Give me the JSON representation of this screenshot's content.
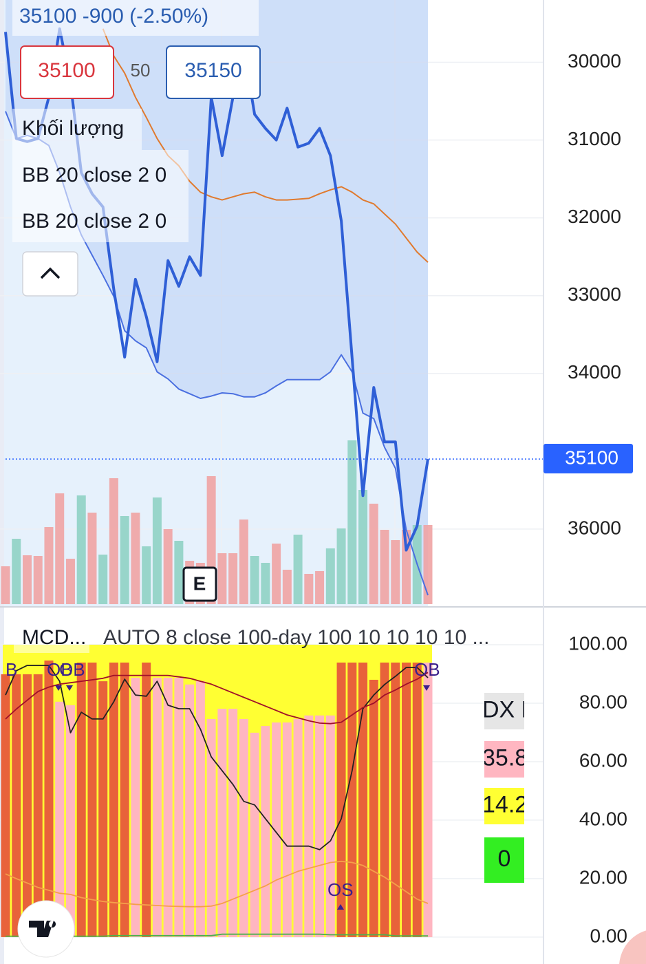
{
  "overlay": {
    "quote": "35100  -900 (-2.50%)",
    "bid": "35100",
    "spread": "50",
    "ask": "35150",
    "volume_label": "Khối lượng",
    "bb_labels": [
      "BB 20 close 2 0",
      "BB 20 close 2 0"
    ],
    "earnings": "E",
    "price_tag": "35100"
  },
  "chart_data": [
    {
      "type": "line",
      "inverted": true,
      "ylim": [
        29200,
        37000
      ],
      "yticks": [
        30000,
        31000,
        32000,
        33000,
        34000,
        36000
      ],
      "grid": true,
      "price_line": 35100,
      "categories": [
        null,
        null,
        null,
        null,
        null,
        null,
        null,
        null,
        null,
        null,
        null,
        null,
        null,
        null,
        null,
        null,
        null,
        null,
        null,
        null,
        null,
        null,
        null,
        null,
        null,
        null,
        null,
        null,
        null,
        null,
        null,
        null,
        null,
        null,
        null,
        null,
        null,
        null,
        null,
        null
      ],
      "series": [
        {
          "color": "#2f5fd6",
          "values": [
            29610,
            30980,
            31020,
            30980,
            30450,
            29570,
            30270,
            31420,
            31690,
            31860,
            32920,
            33790,
            32790,
            33270,
            33850,
            32550,
            32880,
            32500,
            32740,
            30450,
            31200,
            30450,
            29830,
            30670,
            30850,
            31000,
            30590,
            31090,
            31040,
            30850,
            31200,
            32040,
            33800,
            35570,
            34180,
            34880,
            34880,
            36270,
            35960,
            35100
          ]
        },
        {
          "color": "#4a6fe0",
          "values": [
            30630,
            30980,
            30940,
            30980,
            31070,
            31420,
            31860,
            32220,
            32480,
            32740,
            33010,
            33450,
            33580,
            33670,
            33980,
            34070,
            34200,
            34260,
            34320,
            34290,
            34250,
            34260,
            34300,
            34300,
            34250,
            34160,
            34080,
            34080,
            34080,
            34080,
            33980,
            33760,
            33980,
            34510,
            34580,
            34950,
            35220,
            36010,
            36450,
            36850
          ]
        },
        {
          "color": "#e07a2e",
          "values": [
            null,
            null,
            null,
            null,
            null,
            null,
            null,
            null,
            null,
            29570,
            29920,
            30140,
            30450,
            30710,
            30980,
            31200,
            31330,
            31530,
            31670,
            31730,
            31770,
            31730,
            31690,
            31670,
            31730,
            31770,
            31770,
            31760,
            31750,
            31690,
            31640,
            31600,
            31670,
            31770,
            31820,
            31950,
            32080,
            32260,
            32440,
            32570
          ]
        }
      ],
      "volume": {
        "values": [
          55,
          95,
          71,
          70,
          112,
          161,
          66,
          158,
          133,
          72,
          183,
          128,
          133,
          84,
          155,
          109,
          92,
          63,
          60,
          186,
          74,
          74,
          123,
          70,
          60,
          88,
          50,
          101,
          44,
          48,
          81,
          110,
          238,
          166,
          146,
          108,
          93,
          108,
          115,
          115
        ],
        "colors": [
          "#f0a3a3",
          "#8fd1c4",
          "#f0a3a3",
          "#f0a3a3",
          "#f0a3a3",
          "#f0a3a3",
          "#f0a3a3",
          "#8fd1c4",
          "#f0a3a3",
          "#8fd1c4",
          "#f0a3a3",
          "#8fd1c4",
          "#f0a3a3",
          "#8fd1c4",
          "#8fd1c4",
          "#f0a3a3",
          "#8fd1c4",
          "#f0a3a3",
          "#f0a3a3",
          "#f0a3a3",
          "#f0a3a3",
          "#f0a3a3",
          "#f0a3a3",
          "#8fd1c4",
          "#8fd1c4",
          "#f0a3a3",
          "#f0a3a3",
          "#8fd1c4",
          "#f0a3a3",
          "#f0a3a3",
          "#8fd1c4",
          "#8fd1c4",
          "#8fd1c4",
          "#8fd1c4",
          "#f0a3a3",
          "#f0a3a3",
          "#f0a3a3",
          "#f0a3a3",
          "#8fd1c4",
          "#f0a3a3"
        ]
      }
    },
    {
      "type": "bar",
      "title": "MCD...",
      "subtitle": "AUTO 8 close 100-day 100 10 10 10 10 ...",
      "ylim": [
        -9.2,
        112.7
      ],
      "yticks": [
        {
          "value": 100,
          "label": "100.00"
        },
        {
          "value": 80,
          "label": "80.00"
        },
        {
          "value": 60,
          "label": "60.00"
        },
        {
          "value": 40,
          "label": "40.00"
        },
        {
          "value": 20,
          "label": "20.00"
        },
        {
          "value": 0,
          "label": "0.00"
        }
      ],
      "grid": true,
      "background_color": "#ffff33",
      "categories": [
        null,
        null,
        null,
        null,
        null,
        null,
        null,
        null,
        null,
        null,
        null,
        null,
        null,
        null,
        null,
        null,
        null,
        null,
        null,
        null,
        null,
        null,
        null,
        null,
        null,
        null,
        null,
        null,
        null,
        null,
        null,
        null,
        null,
        null,
        null,
        null,
        null,
        null,
        null,
        null
      ],
      "values": [
        89.9,
        89.9,
        89.9,
        89.9,
        94.6,
        80.5,
        79.3,
        93.9,
        93.9,
        87.5,
        93.9,
        93.9,
        88.7,
        93.9,
        88.7,
        88.7,
        88.7,
        86.4,
        87.5,
        74.6,
        78.1,
        78.1,
        74.6,
        69.9,
        72.2,
        73.4,
        73.4,
        74.6,
        75.8,
        75.8,
        75.8,
        93.9,
        93.9,
        93.9,
        88.0,
        93.9,
        93.9,
        93.9,
        93.9,
        93.9
      ],
      "colors": [
        "#e8623a",
        "#e8623a",
        "#e8623a",
        "#e8623a",
        "#e8623a",
        "#ffb6c1",
        "#ffb6c1",
        "#e8623a",
        "#e8623a",
        "#e8623a",
        "#e8623a",
        "#e8623a",
        "#ffb6c1",
        "#e8623a",
        "#ffb6c1",
        "#ffb6c1",
        "#ffb6c1",
        "#ffb6c1",
        "#ffb6c1",
        "#ffb6c1",
        "#ffb6c1",
        "#ffb6c1",
        "#ffb6c1",
        "#ffb6c1",
        "#ffb6c1",
        "#ffb6c1",
        "#ffb6c1",
        "#ffb6c1",
        "#ffb6c1",
        "#ffb6c1",
        "#ffb6c1",
        "#e8623a",
        "#e8623a",
        "#e8623a",
        "#e8623a",
        "#e8623a",
        "#e8623a",
        "#e8623a",
        "#e8623a",
        "#ffb6c1"
      ],
      "series": [
        {
          "color": "#222222",
          "values": [
            82.8,
            91.1,
            92.9,
            92.9,
            92.9,
            87.5,
            69.9,
            76.9,
            74.6,
            74.6,
            80.5,
            88.2,
            82.8,
            82.4,
            87.5,
            79.3,
            78.1,
            78.1,
            71.1,
            61.6,
            56.9,
            52.2,
            46.4,
            45.2,
            40.5,
            35.8,
            31.1,
            31.1,
            31.1,
            29.9,
            32.9,
            40.5,
            56.9,
            78.1,
            82.8,
            86.4,
            89.2,
            92.2,
            92.2,
            88.7
          ]
        },
        {
          "color": "#a0102a",
          "values": [
            74.6,
            78,
            81,
            84,
            85.5,
            86.5,
            87,
            87.5,
            88,
            88.5,
            89.5,
            89.5,
            89.5,
            89.5,
            89.5,
            89.5,
            89,
            88.5,
            87.5,
            86.5,
            85,
            83.5,
            82,
            80.5,
            79,
            77.5,
            76,
            75,
            74,
            73.2,
            73,
            73.5,
            76,
            78.5,
            80,
            82.8,
            84.5,
            86.5,
            88.2,
            90.5
          ]
        },
        {
          "color": "#f5a04a",
          "values": [
            21.6,
            20,
            18.5,
            17,
            16,
            15,
            14.6,
            13.5,
            12.8,
            12.2,
            11.8,
            11.5,
            11.2,
            11,
            10.8,
            10.6,
            10.5,
            10.4,
            10.4,
            10.6,
            11.5,
            13,
            14.5,
            16,
            17.5,
            19.5,
            21,
            22.5,
            23.5,
            24.5,
            25.5,
            25.9,
            25.5,
            24.5,
            22.5,
            20.5,
            18,
            15.5,
            13,
            11.5
          ]
        },
        {
          "color": "#4caf50",
          "values": [
            0.3,
            0.3,
            0.3,
            0.3,
            0.3,
            0.3,
            0.3,
            0.3,
            0.3,
            0.3,
            0.5,
            0.5,
            0.5,
            0.5,
            0.5,
            0.5,
            0.5,
            0.5,
            0.5,
            0.5,
            1,
            1,
            1,
            1,
            1,
            1,
            1,
            1,
            1,
            1,
            0.8,
            0.8,
            0.8,
            0.8,
            0.8,
            0.8,
            0.4,
            0.4,
            0.4,
            0.4
          ]
        }
      ],
      "annotations": [
        "B",
        "OB",
        "OB",
        "OB",
        "OS"
      ],
      "table": [
        "DX F",
        "35.8",
        "14.2",
        "0"
      ]
    }
  ]
}
